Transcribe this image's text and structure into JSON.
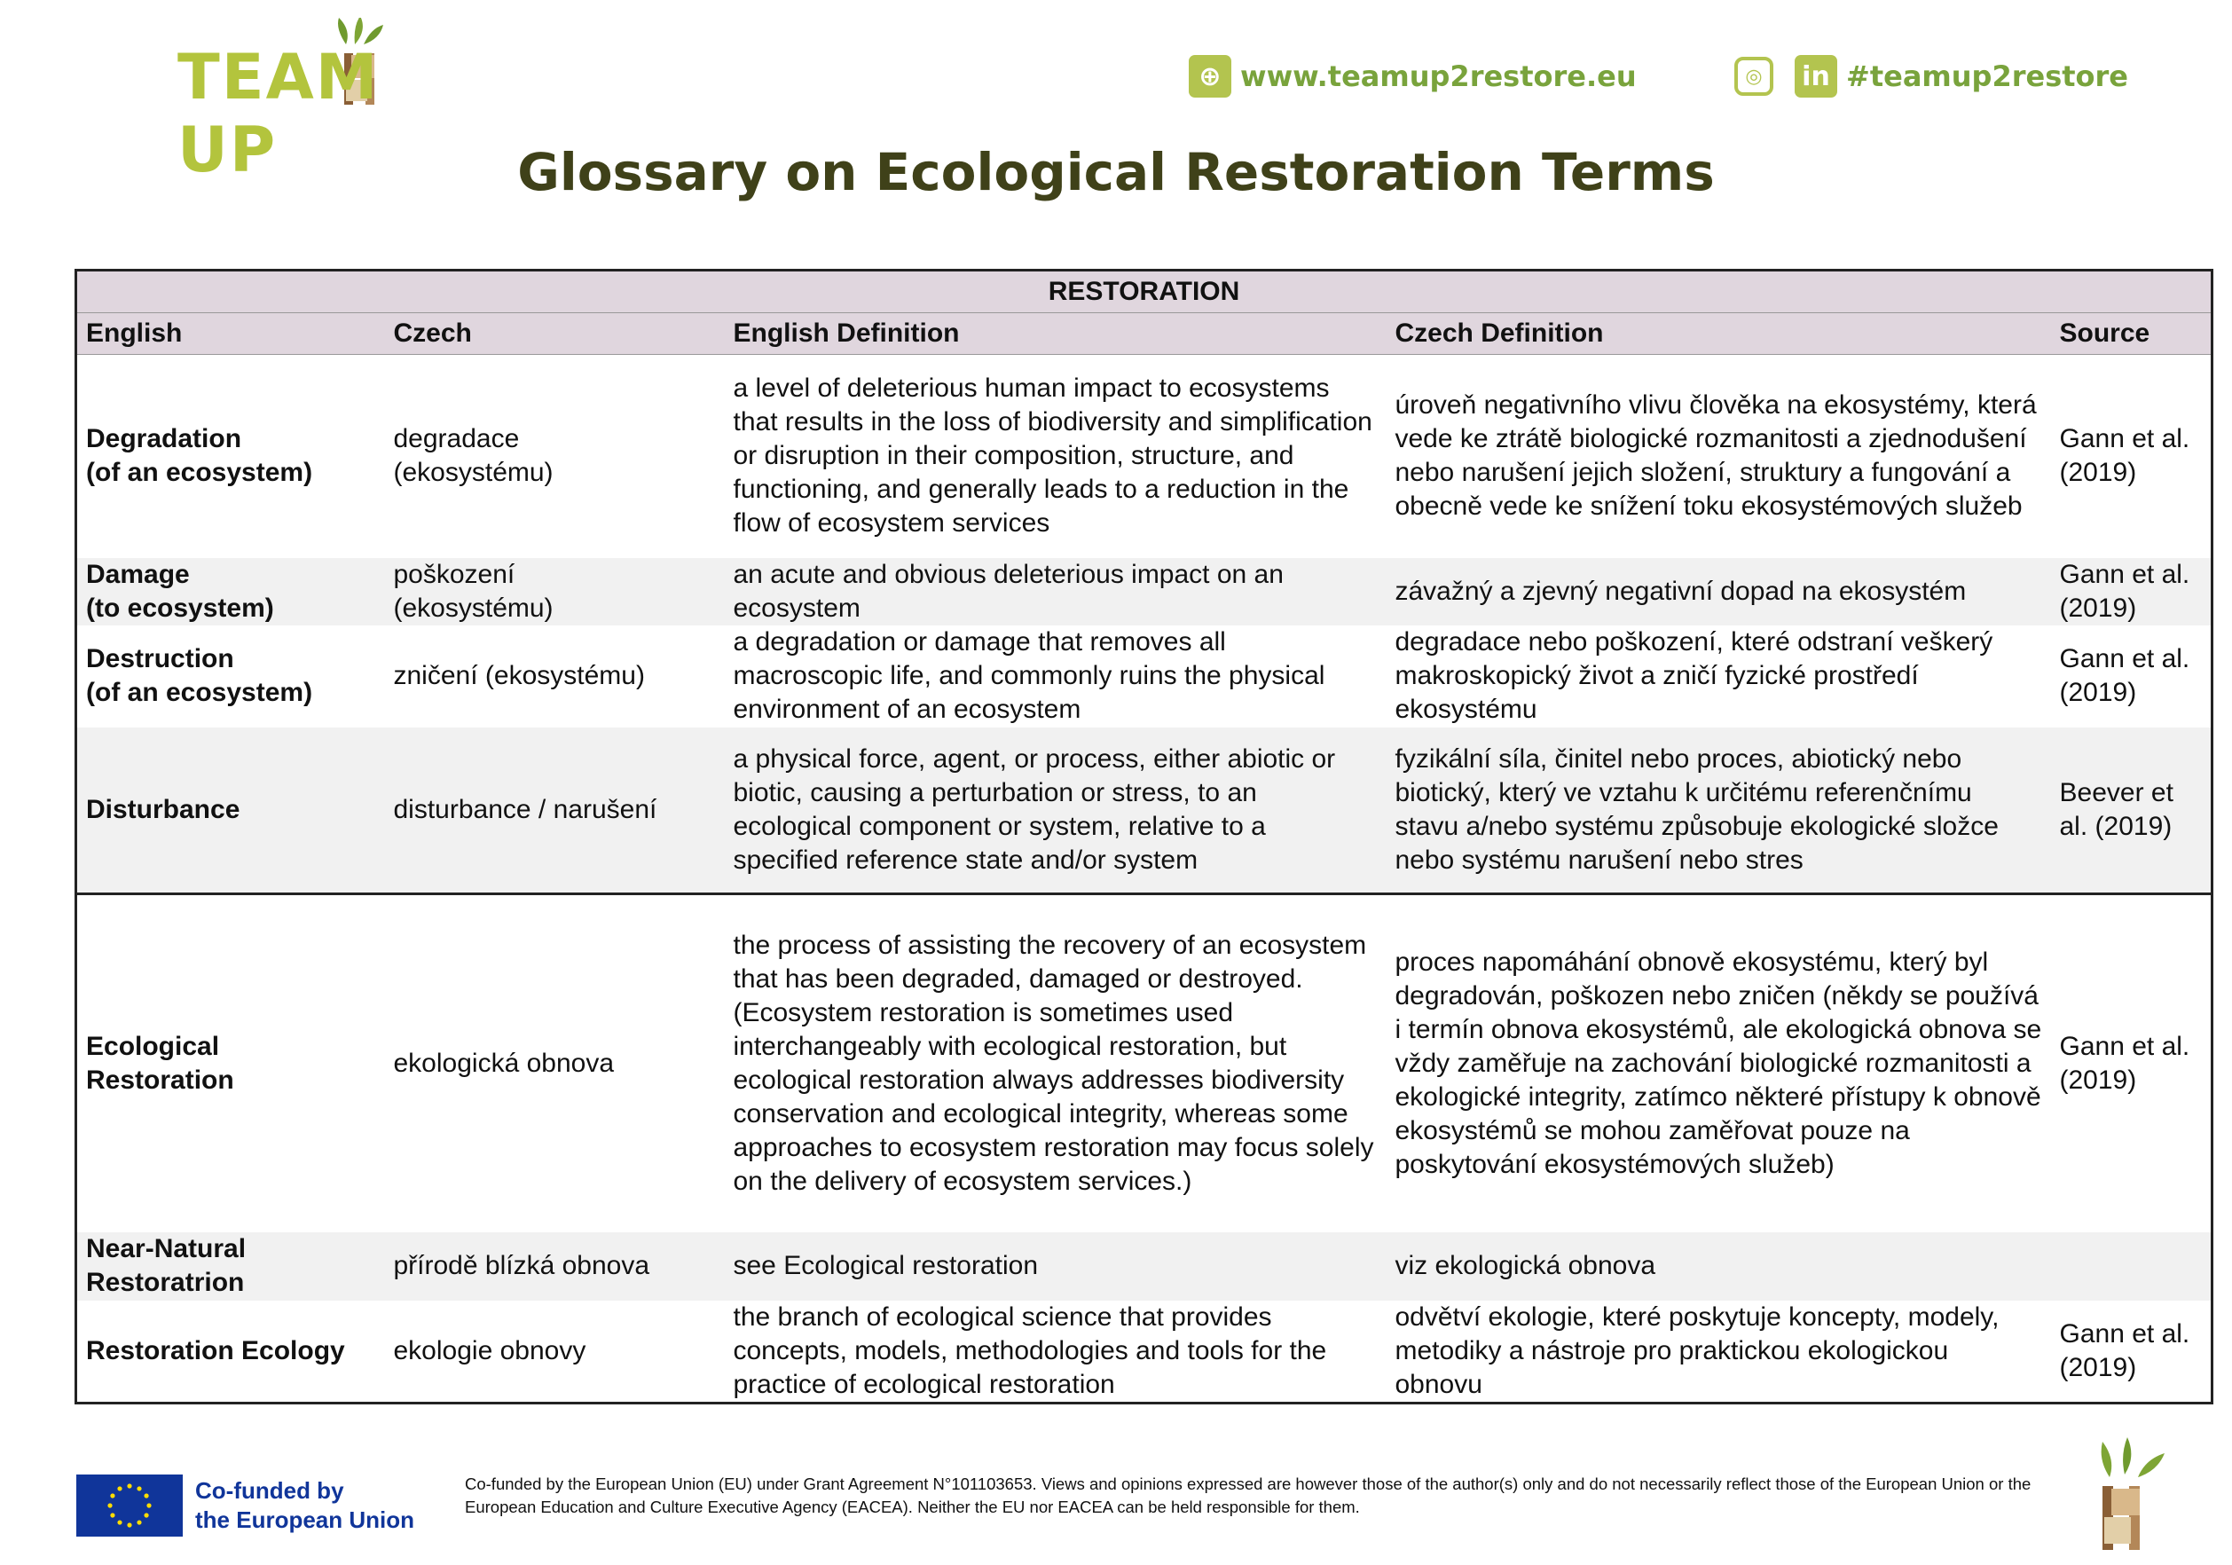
{
  "header": {
    "logo_text": "TEAM UP",
    "website": "www.teamup2restore.eu",
    "social_handle": "#teamup2restore",
    "icons": [
      "globe-icon",
      "instagram-icon",
      "linkedin-icon"
    ],
    "colors": {
      "brand_green": "#b3c43d",
      "link_green": "#79a33c",
      "title": "#3f4119",
      "header_bg": "#e0d6de"
    }
  },
  "title": "Glossary on Ecological Restoration Terms",
  "table": {
    "section": "RESTORATION",
    "columns": [
      "English",
      "Czech",
      "English Definition",
      "Czech Definition",
      "Source"
    ],
    "rows": [
      {
        "english": "Degradation\n(of an ecosystem)",
        "czech": "degradace\n(ekosystému)",
        "en_def": "a level of deleterious human impact to ecosystems that results in the loss of biodiversity and simplification or disruption in their composition, structure, and functioning, and generally leads to a reduction in the flow of ecosystem services",
        "cz_def": "úroveň negativního vlivu člověka na ekosystémy, která vede ke ztrátě biologické rozmanitosti a zjednodušení nebo narušení jejich složení, struktury a fungování a obecně vede ke snížení toku ekosystémových služeb",
        "source": "Gann et al. (2019)"
      },
      {
        "english": "Damage\n(to ecosystem)",
        "czech": "poškození\n(ekosystému)",
        "en_def": "an acute and obvious deleterious impact on an ecosystem",
        "cz_def": "závažný a zjevný negativní dopad na ekosystém",
        "source": "Gann et al. (2019)"
      },
      {
        "english": "Destruction\n(of an ecosystem)",
        "czech": "zničení (ekosystému)",
        "en_def": "a degradation or damage that removes all macroscopic life, and commonly ruins the physical environment of an ecosystem",
        "cz_def": "degradace nebo poškození, které odstraní veškerý makroskopický život a zničí fyzické prostředí ekosystému",
        "source": "Gann et al. (2019)"
      },
      {
        "english": "Disturbance",
        "czech": "disturbance / narušení",
        "en_def": "a physical force, agent, or process, either abiotic or biotic, causing a perturbation or stress, to an ecological component or system, relative to a specified reference state and/or system",
        "cz_def": "fyzikální síla, činitel nebo proces, abiotický nebo biotický, který ve vztahu k určitému referenčnímu stavu a/nebo systému způsobuje ekologické složce nebo systému narušení nebo stres",
        "source": "Beever et al. (2019)"
      },
      {
        "english": "Ecological\nRestoration",
        "czech": "ekologická obnova",
        "en_def": "the process of assisting the recovery of an ecosystem that has been degraded, damaged or destroyed. (Ecosystem restoration is sometimes used interchangeably with ecological restoration, but ecological restoration always addresses biodiversity conservation and ecological integrity, whereas some approaches to ecosystem restoration may focus solely on the delivery of ecosystem services.)",
        "cz_def": "proces napomáhání obnově ekosystému, který byl degradován, poškozen nebo zničen (někdy se používá i termín obnova ekosystémů, ale ekologická obnova se vždy zaměřuje na zachování biologické rozmanitosti a ekologické integrity, zatímco některé přístupy k obnově ekosystémů se mohou zaměřovat pouze na poskytování ekosystémových služeb)",
        "source": "Gann et al. (2019)"
      },
      {
        "english": "Near-Natural\nRestoratrion",
        "czech": "přírodě blízká obnova",
        "en_def": "see Ecological restoration",
        "cz_def": "viz ekologická obnova",
        "source": ""
      },
      {
        "english": "Restoration Ecology",
        "czech": "ekologie obnovy",
        "en_def": "the branch of ecological science that provides concepts, models, methodologies and tools for the practice of ecological restoration",
        "cz_def": "odvětví ekologie, které poskytuje koncepty, modely, metodiky a nástroje pro praktickou ekologickou obnovu",
        "source": "Gann et al. (2019)"
      }
    ]
  },
  "footer": {
    "eu_label_line1": "Co-funded by",
    "eu_label_line2": "the European Union",
    "disclaimer": "Co-funded by the European Union (EU) under Grant Agreement N°101103653. Views and opinions expressed are however those of the author(s) only and do not necessarily reflect those of the European Union or the European Education and Culture Executive Agency (EACEA). Neither the EU nor EACEA can be held responsible for them."
  }
}
